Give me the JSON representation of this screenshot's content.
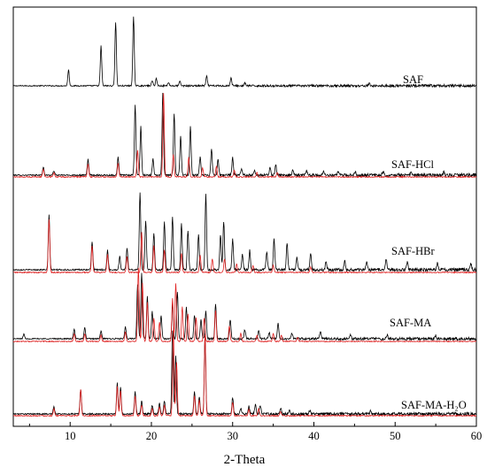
{
  "chart_data": {
    "type": "line",
    "title": "",
    "xlabel": "2-Theta",
    "ylabel": "",
    "xlim": [
      3,
      60
    ],
    "xticks": [
      "10",
      "20",
      "30",
      "40",
      "50",
      "60"
    ],
    "grid": false,
    "colors": {
      "measured": "#000000",
      "simulated": "#e02020",
      "axis": "#000000"
    },
    "panels": [
      {
        "label": "SAF",
        "series": [
          {
            "name": "",
            "color": "#000000",
            "peaks": [
              [
                9.8,
                0.22
              ],
              [
                13.8,
                0.55
              ],
              [
                15.6,
                0.88
              ],
              [
                17.8,
                0.95
              ],
              [
                20.1,
                0.07
              ],
              [
                20.6,
                0.1
              ],
              [
                22.1,
                0.05
              ],
              [
                23.5,
                0.06
              ],
              [
                26.8,
                0.13
              ],
              [
                29.8,
                0.11
              ],
              [
                31.5,
                0.04
              ],
              [
                46.8,
                0.03
              ]
            ]
          }
        ]
      },
      {
        "label": "SAF-HCl",
        "series": [
          {
            "name": "",
            "color": "#000000",
            "peaks": [
              [
                6.7,
                0.09
              ],
              [
                8.0,
                0.05
              ],
              [
                12.2,
                0.18
              ],
              [
                15.9,
                0.2
              ],
              [
                18.0,
                0.8
              ],
              [
                18.7,
                0.55
              ],
              [
                20.2,
                0.18
              ],
              [
                21.4,
                0.92
              ],
              [
                22.8,
                0.7
              ],
              [
                23.6,
                0.45
              ],
              [
                24.8,
                0.55
              ],
              [
                26.0,
                0.2
              ],
              [
                27.4,
                0.3
              ],
              [
                28.2,
                0.18
              ],
              [
                30.0,
                0.2
              ],
              [
                31.1,
                0.08
              ],
              [
                32.7,
                0.06
              ],
              [
                34.6,
                0.09
              ],
              [
                35.3,
                0.12
              ],
              [
                37.4,
                0.05
              ],
              [
                39.1,
                0.05
              ],
              [
                41.2,
                0.05
              ],
              [
                43.0,
                0.04
              ],
              [
                45.1,
                0.04
              ],
              [
                48.5,
                0.04
              ],
              [
                52.0,
                0.03
              ],
              [
                56.0,
                0.03
              ]
            ]
          },
          {
            "name": "",
            "color": "#e02020",
            "peaks": [
              [
                6.7,
                0.09
              ],
              [
                8.0,
                0.05
              ],
              [
                12.2,
                0.15
              ],
              [
                15.9,
                0.16
              ],
              [
                18.3,
                0.3
              ],
              [
                21.5,
                0.95
              ],
              [
                22.7,
                0.25
              ],
              [
                24.6,
                0.22
              ],
              [
                26.3,
                0.1
              ],
              [
                28.0,
                0.12
              ],
              [
                30.2,
                0.08
              ],
              [
                33.0,
                0.05
              ],
              [
                35.5,
                0.05
              ]
            ]
          }
        ]
      },
      {
        "label": "SAF-HBr",
        "series": [
          {
            "name": "",
            "color": "#000000",
            "peaks": [
              [
                7.4,
                0.62
              ],
              [
                12.7,
                0.32
              ],
              [
                14.6,
                0.22
              ],
              [
                16.1,
                0.15
              ],
              [
                17.0,
                0.25
              ],
              [
                18.6,
                0.88
              ],
              [
                19.3,
                0.55
              ],
              [
                20.3,
                0.42
              ],
              [
                21.6,
                0.55
              ],
              [
                22.6,
                0.6
              ],
              [
                23.7,
                0.52
              ],
              [
                24.5,
                0.45
              ],
              [
                25.8,
                0.4
              ],
              [
                26.7,
                0.85
              ],
              [
                28.5,
                0.4
              ],
              [
                28.9,
                0.55
              ],
              [
                30.0,
                0.35
              ],
              [
                31.2,
                0.18
              ],
              [
                32.1,
                0.22
              ],
              [
                34.2,
                0.2
              ],
              [
                35.1,
                0.35
              ],
              [
                36.7,
                0.3
              ],
              [
                37.9,
                0.14
              ],
              [
                39.6,
                0.18
              ],
              [
                41.5,
                0.1
              ],
              [
                43.8,
                0.1
              ],
              [
                46.5,
                0.1
              ],
              [
                48.9,
                0.12
              ],
              [
                51.5,
                0.08
              ],
              [
                55.2,
                0.08
              ],
              [
                59.3,
                0.08
              ]
            ]
          },
          {
            "name": "",
            "color": "#e02020",
            "peaks": [
              [
                7.4,
                0.6
              ],
              [
                12.7,
                0.3
              ],
              [
                14.6,
                0.2
              ],
              [
                17.0,
                0.18
              ],
              [
                18.8,
                0.45
              ],
              [
                20.3,
                0.3
              ],
              [
                21.6,
                0.25
              ],
              [
                23.7,
                0.22
              ],
              [
                26.0,
                0.2
              ],
              [
                27.5,
                0.15
              ],
              [
                29.0,
                0.15
              ],
              [
                30.5,
                0.1
              ],
              [
                32.5,
                0.08
              ],
              [
                35.0,
                0.08
              ],
              [
                39.6,
                0.06
              ]
            ]
          }
        ]
      },
      {
        "label": "SAF-MA",
        "series": [
          {
            "name": "",
            "color": "#000000",
            "peaks": [
              [
                4.3,
                0.06
              ],
              [
                10.5,
                0.12
              ],
              [
                11.8,
                0.14
              ],
              [
                13.8,
                0.1
              ],
              [
                16.8,
                0.15
              ],
              [
                18.3,
                0.7
              ],
              [
                18.8,
                0.85
              ],
              [
                19.5,
                0.55
              ],
              [
                20.1,
                0.35
              ],
              [
                21.2,
                0.3
              ],
              [
                22.6,
                0.45
              ],
              [
                23.2,
                0.6
              ],
              [
                24.3,
                0.4
              ],
              [
                25.3,
                0.3
              ],
              [
                26.1,
                0.25
              ],
              [
                26.7,
                0.35
              ],
              [
                27.9,
                0.45
              ],
              [
                29.7,
                0.25
              ],
              [
                31.5,
                0.12
              ],
              [
                33.2,
                0.1
              ],
              [
                34.5,
                0.08
              ],
              [
                35.6,
                0.2
              ],
              [
                37.3,
                0.07
              ],
              [
                40.8,
                0.1
              ],
              [
                44.5,
                0.06
              ],
              [
                49.0,
                0.05
              ],
              [
                55.0,
                0.04
              ]
            ]
          },
          {
            "name": "",
            "color": "#e02020",
            "peaks": [
              [
                10.5,
                0.1
              ],
              [
                11.8,
                0.1
              ],
              [
                13.8,
                0.08
              ],
              [
                16.8,
                0.12
              ],
              [
                18.4,
                0.95
              ],
              [
                18.9,
                0.75
              ],
              [
                19.5,
                0.5
              ],
              [
                20.3,
                0.3
              ],
              [
                21.0,
                0.25
              ],
              [
                22.6,
                0.55
              ],
              [
                23.0,
                0.75
              ],
              [
                23.8,
                0.45
              ],
              [
                24.5,
                0.35
              ],
              [
                25.5,
                0.3
              ],
              [
                26.5,
                0.3
              ],
              [
                27.9,
                0.4
              ],
              [
                29.6,
                0.2
              ],
              [
                31.0,
                0.1
              ],
              [
                33.0,
                0.08
              ],
              [
                35.0,
                0.1
              ],
              [
                36.0,
                0.08
              ],
              [
                38.0,
                0.05
              ]
            ]
          }
        ]
      },
      {
        "label": "SAF-MA-H₂O",
        "series": [
          {
            "name": "",
            "color": "#000000",
            "peaks": [
              [
                8.0,
                0.08
              ],
              [
                11.3,
                0.28
              ],
              [
                15.8,
                0.35
              ],
              [
                16.2,
                0.3
              ],
              [
                18.0,
                0.25
              ],
              [
                18.8,
                0.15
              ],
              [
                20.1,
                0.1
              ],
              [
                21.0,
                0.12
              ],
              [
                21.6,
                0.15
              ],
              [
                22.6,
                0.95
              ],
              [
                23.0,
                0.65
              ],
              [
                25.3,
                0.25
              ],
              [
                25.9,
                0.2
              ],
              [
                26.6,
                0.9
              ],
              [
                30.0,
                0.18
              ],
              [
                31.0,
                0.06
              ],
              [
                32.0,
                0.09
              ],
              [
                32.8,
                0.1
              ],
              [
                33.4,
                0.1
              ],
              [
                35.9,
                0.07
              ],
              [
                37.0,
                0.04
              ],
              [
                39.5,
                0.04
              ],
              [
                47.0,
                0.04
              ]
            ]
          },
          {
            "name": "",
            "color": "#e02020",
            "peaks": [
              [
                8.0,
                0.08
              ],
              [
                11.3,
                0.3
              ],
              [
                15.8,
                0.33
              ],
              [
                16.2,
                0.28
              ],
              [
                18.0,
                0.22
              ],
              [
                18.8,
                0.12
              ],
              [
                20.1,
                0.08
              ],
              [
                21.0,
                0.1
              ],
              [
                21.6,
                0.12
              ],
              [
                22.7,
                0.97
              ],
              [
                23.1,
                0.6
              ],
              [
                25.3,
                0.22
              ],
              [
                25.9,
                0.18
              ],
              [
                26.6,
                0.92
              ],
              [
                30.0,
                0.15
              ],
              [
                32.0,
                0.07
              ],
              [
                33.2,
                0.08
              ],
              [
                35.9,
                0.05
              ]
            ]
          }
        ]
      }
    ]
  }
}
